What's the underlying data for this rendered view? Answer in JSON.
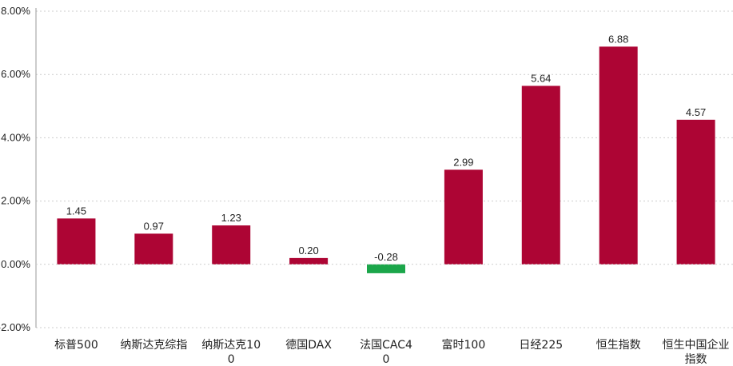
{
  "chart_data": {
    "type": "bar",
    "title": "",
    "xlabel": "",
    "ylabel": "",
    "ylim": [
      -2,
      8
    ],
    "yticks": [
      "-2.00%",
      "0.00%",
      "2.00%",
      "4.00%",
      "6.00%",
      "8.00%"
    ],
    "ytick_values": [
      -2,
      0,
      2,
      4,
      6,
      8
    ],
    "grid": "horizontal-dashed",
    "categories": [
      "标普500",
      "纳斯达克综指",
      "纳斯达克100",
      "德国DAX",
      "法国CAC40",
      "富时100",
      "日经225",
      "恒生指数",
      "恒生中国企业指数"
    ],
    "values": [
      1.45,
      0.97,
      1.23,
      0.2,
      -0.28,
      2.99,
      5.64,
      6.88,
      4.57
    ],
    "value_labels": [
      "1.45",
      "0.97",
      "1.23",
      "0.20",
      "-0.28",
      "2.99",
      "5.64",
      "6.88",
      "4.57"
    ],
    "colors": {
      "positive": "#ad0534",
      "negative": "#1ba64a",
      "grid": "#cccccc",
      "axis": "#999999"
    }
  }
}
